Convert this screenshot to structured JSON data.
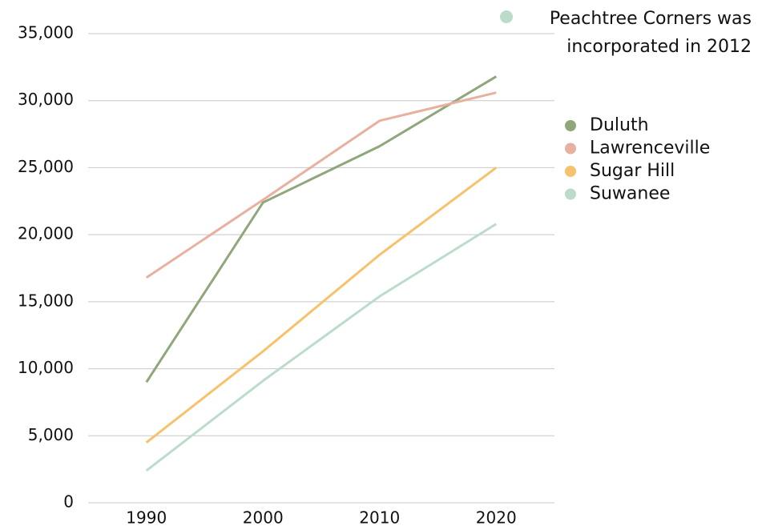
{
  "chart_data": {
    "type": "line",
    "categories": [
      "1990",
      "2000",
      "2010",
      "2020"
    ],
    "series": [
      {
        "name": "Duluth",
        "color": "#8fa77a",
        "values": [
          9000,
          22400,
          26600,
          31800
        ]
      },
      {
        "name": "Lawrenceville",
        "color": "#e8b09e",
        "values": [
          16800,
          22600,
          28500,
          30600
        ]
      },
      {
        "name": "Sugar Hill",
        "color": "#f7c26b",
        "values": [
          4500,
          11300,
          18500,
          25000
        ]
      },
      {
        "name": "Suwanee",
        "color": "#bcdccb",
        "values": [
          2400,
          9100,
          15400,
          20800
        ]
      }
    ],
    "ylim": [
      0,
      35000
    ],
    "yticks": [
      0,
      {
        "value": 5000,
        "label": "5,000"
      },
      {
        "value": 10000,
        "label": "10,000"
      },
      {
        "value": 15000,
        "label": "15,000"
      },
      {
        "value": 20000,
        "label": "20,000"
      },
      {
        "value": 25000,
        "label": "25,000"
      },
      {
        "value": 30000,
        "label": "30,000"
      },
      {
        "value": 35000,
        "label": "35,000"
      }
    ],
    "grid": true,
    "legend": "right",
    "annotation": {
      "lines": [
        "Peachtree Corners was",
        "incorporated in 2012"
      ],
      "color": "#bcdccb"
    }
  }
}
